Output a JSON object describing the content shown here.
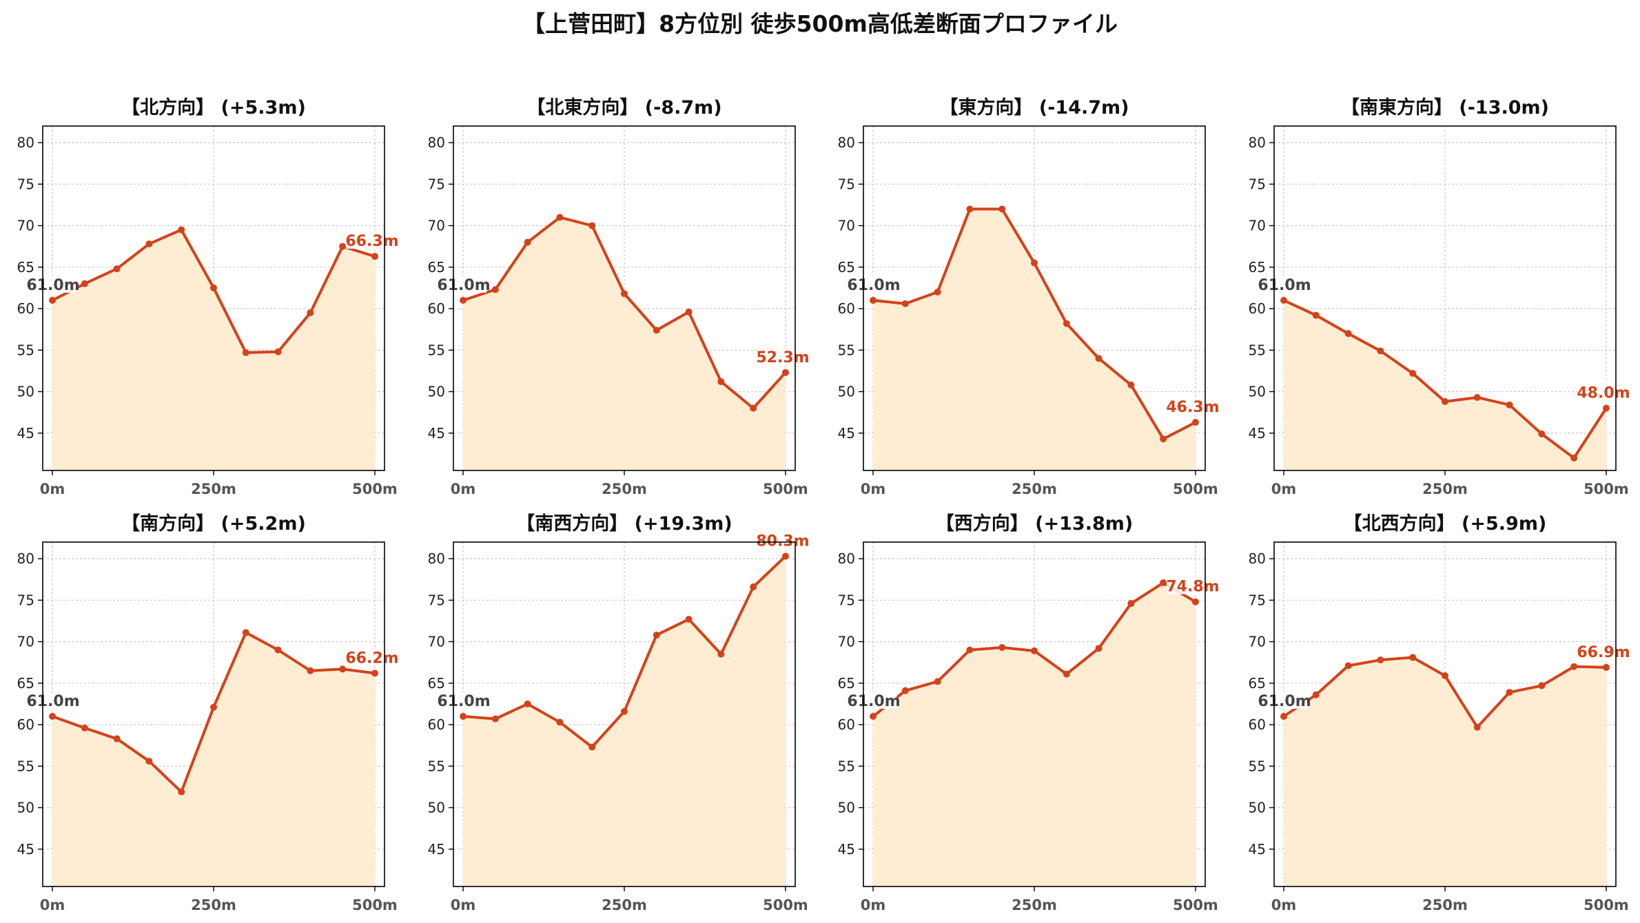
{
  "title": "【上菅田町】8方位別 徒歩500m高低差断面プロファイル",
  "chart_data": [
    {
      "type": "area",
      "title": "【北方向】 (+5.3m)",
      "x": [
        0,
        50,
        100,
        150,
        200,
        250,
        300,
        350,
        400,
        450,
        500
      ],
      "values": [
        61.0,
        63.0,
        64.8,
        67.8,
        69.5,
        62.5,
        54.7,
        54.8,
        59.5,
        67.5,
        66.3
      ],
      "start_label": "61.0m",
      "end_label": "66.3m",
      "xticks": [
        "0m",
        "250m",
        "500m"
      ],
      "yticks": [
        45,
        50,
        55,
        60,
        65,
        70,
        75,
        80
      ],
      "ylim": [
        40.5,
        82
      ],
      "xlim": [
        -15,
        515
      ],
      "grid": true
    },
    {
      "type": "area",
      "title": "【北東方向】 (-8.7m)",
      "x": [
        0,
        50,
        100,
        150,
        200,
        250,
        300,
        350,
        400,
        450,
        500
      ],
      "values": [
        61.0,
        62.3,
        68.0,
        71.0,
        70.0,
        61.8,
        57.4,
        59.6,
        51.2,
        48.0,
        52.3
      ],
      "start_label": "61.0m",
      "end_label": "52.3m",
      "xticks": [
        "0m",
        "250m",
        "500m"
      ],
      "yticks": [
        45,
        50,
        55,
        60,
        65,
        70,
        75,
        80
      ],
      "ylim": [
        40.5,
        82
      ],
      "xlim": [
        -15,
        515
      ],
      "grid": true
    },
    {
      "type": "area",
      "title": "【東方向】 (-14.7m)",
      "x": [
        0,
        50,
        100,
        150,
        200,
        250,
        300,
        350,
        400,
        450,
        500
      ],
      "values": [
        61.0,
        60.6,
        62.0,
        72.0,
        72.0,
        65.5,
        58.2,
        54.0,
        50.8,
        44.3,
        46.3
      ],
      "start_label": "61.0m",
      "end_label": "46.3m",
      "xticks": [
        "0m",
        "250m",
        "500m"
      ],
      "yticks": [
        45,
        50,
        55,
        60,
        65,
        70,
        75,
        80
      ],
      "ylim": [
        40.5,
        82
      ],
      "xlim": [
        -15,
        515
      ],
      "grid": true
    },
    {
      "type": "area",
      "title": "【南東方向】 (-13.0m)",
      "x": [
        0,
        50,
        100,
        150,
        200,
        250,
        300,
        350,
        400,
        450,
        500
      ],
      "values": [
        61.0,
        59.2,
        57.0,
        54.9,
        52.2,
        48.8,
        49.3,
        48.4,
        44.9,
        42.0,
        48.0
      ],
      "start_label": "61.0m",
      "end_label": "48.0m",
      "xticks": [
        "0m",
        "250m",
        "500m"
      ],
      "yticks": [
        45,
        50,
        55,
        60,
        65,
        70,
        75,
        80
      ],
      "ylim": [
        40.5,
        82
      ],
      "xlim": [
        -15,
        515
      ],
      "grid": true
    },
    {
      "type": "area",
      "title": "【南方向】 (+5.2m)",
      "x": [
        0,
        50,
        100,
        150,
        200,
        250,
        300,
        350,
        400,
        450,
        500
      ],
      "values": [
        61.0,
        59.6,
        58.3,
        55.6,
        51.9,
        62.1,
        71.1,
        69.0,
        66.5,
        66.7,
        66.2
      ],
      "start_label": "61.0m",
      "end_label": "66.2m",
      "xticks": [
        "0m",
        "250m",
        "500m"
      ],
      "yticks": [
        45,
        50,
        55,
        60,
        65,
        70,
        75,
        80
      ],
      "ylim": [
        40.5,
        82
      ],
      "xlim": [
        -15,
        515
      ],
      "grid": true
    },
    {
      "type": "area",
      "title": "【南西方向】 (+19.3m)",
      "x": [
        0,
        50,
        100,
        150,
        200,
        250,
        300,
        350,
        400,
        450,
        500
      ],
      "values": [
        61.0,
        60.7,
        62.5,
        60.3,
        57.3,
        61.6,
        70.8,
        72.7,
        68.5,
        76.6,
        80.3
      ],
      "start_label": "61.0m",
      "end_label": "80.3m",
      "xticks": [
        "0m",
        "250m",
        "500m"
      ],
      "yticks": [
        45,
        50,
        55,
        60,
        65,
        70,
        75,
        80
      ],
      "ylim": [
        40.5,
        82
      ],
      "xlim": [
        -15,
        515
      ],
      "grid": true
    },
    {
      "type": "area",
      "title": "【西方向】 (+13.8m)",
      "x": [
        0,
        50,
        100,
        150,
        200,
        250,
        300,
        350,
        400,
        450,
        500
      ],
      "values": [
        61.0,
        64.1,
        65.2,
        69.0,
        69.3,
        68.9,
        66.1,
        69.2,
        74.6,
        77.1,
        74.8
      ],
      "start_label": "61.0m",
      "end_label": "74.8m",
      "xticks": [
        "0m",
        "250m",
        "500m"
      ],
      "yticks": [
        45,
        50,
        55,
        60,
        65,
        70,
        75,
        80
      ],
      "ylim": [
        40.5,
        82
      ],
      "xlim": [
        -15,
        515
      ],
      "grid": true
    },
    {
      "type": "area",
      "title": "【北西方向】 (+5.9m)",
      "x": [
        0,
        50,
        100,
        150,
        200,
        250,
        300,
        350,
        400,
        450,
        500
      ],
      "values": [
        61.0,
        63.6,
        67.1,
        67.8,
        68.1,
        65.9,
        59.7,
        63.9,
        64.7,
        67.0,
        66.9
      ],
      "start_label": "61.0m",
      "end_label": "66.9m",
      "xticks": [
        "0m",
        "250m",
        "500m"
      ],
      "yticks": [
        45,
        50,
        55,
        60,
        65,
        70,
        75,
        80
      ],
      "ylim": [
        40.5,
        82
      ],
      "xlim": [
        -15,
        515
      ],
      "grid": true
    }
  ],
  "colors": {
    "line": "#d4421a",
    "fill": "#ffedd3",
    "grid": "#c8c8c8",
    "start_label": "#444444",
    "end_label": "#d4421a",
    "tick_text": "#222222",
    "xtick_text": "#555555"
  }
}
